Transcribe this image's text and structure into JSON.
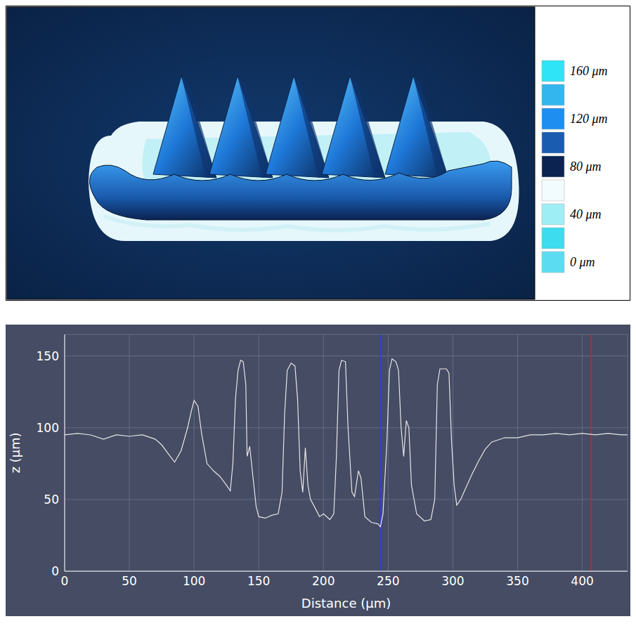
{
  "chart_data": [
    {
      "type": "surface",
      "colorbar": {
        "range": [
          0,
          160
        ],
        "colors": [
          "#2ee4f6",
          "#33b6ee",
          "#1e8ef0",
          "#1a5cb0",
          "#0a2350",
          "#f2fbfd",
          "#9eeff5",
          "#3ddcee",
          "#5cdcf0"
        ],
        "ticks": [
          {
            "value": 160,
            "label": "160 μm"
          },
          {
            "value": 120,
            "label": "120 μm"
          },
          {
            "value": 80,
            "label": "80 μm"
          },
          {
            "value": 40,
            "label": "40 μm"
          },
          {
            "value": 0,
            "label": "0 μm"
          }
        ]
      }
    },
    {
      "type": "line",
      "x_label": "Distance (μm)",
      "y_label": "z (μm)",
      "xlim": [
        0,
        435
      ],
      "ylim": [
        0,
        165
      ],
      "xticks": [
        0,
        50,
        100,
        150,
        200,
        250,
        300,
        350,
        400
      ],
      "yticks": [
        0,
        50,
        100,
        150
      ],
      "grid": true,
      "color": "#e6e6e6",
      "vlines": [
        {
          "x": 244,
          "color": "#2a3fe0"
        },
        {
          "x": 407,
          "color": "#d02030"
        }
      ],
      "x": [
        0,
        10,
        20,
        30,
        40,
        50,
        60,
        70,
        75,
        80,
        85,
        90,
        95,
        98,
        100,
        103,
        106,
        110,
        115,
        120,
        125,
        128,
        130,
        132,
        134,
        136,
        138,
        140,
        141,
        143,
        145,
        148,
        150,
        155,
        160,
        165,
        168,
        170,
        172,
        175,
        178,
        180,
        182,
        184,
        186,
        188,
        190,
        193,
        197,
        200,
        205,
        208,
        210,
        212,
        214,
        217,
        219,
        222,
        224,
        227,
        229,
        232,
        237,
        242,
        244,
        246,
        249,
        251,
        253,
        256,
        258,
        260,
        262,
        264,
        266,
        268,
        272,
        278,
        283,
        286,
        288,
        290,
        295,
        297,
        299,
        301,
        303,
        306,
        310,
        315,
        320,
        325,
        330,
        340,
        350,
        360,
        370,
        380,
        390,
        400,
        410,
        420,
        430,
        435
      ],
      "values": [
        95,
        96,
        95,
        92,
        95,
        94,
        95,
        92,
        88,
        82,
        76,
        84,
        100,
        112,
        119,
        115,
        95,
        75,
        70,
        66,
        60,
        56,
        75,
        120,
        140,
        147,
        146,
        130,
        80,
        87,
        70,
        45,
        38,
        37,
        39,
        40,
        55,
        110,
        140,
        145,
        143,
        120,
        70,
        55,
        86,
        60,
        50,
        45,
        38,
        40,
        36,
        40,
        80,
        140,
        147,
        146,
        100,
        55,
        52,
        70,
        65,
        38,
        34,
        33,
        31,
        40,
        90,
        140,
        148,
        146,
        140,
        100,
        80,
        105,
        100,
        60,
        40,
        35,
        36,
        50,
        130,
        141,
        141,
        138,
        90,
        60,
        46,
        50,
        58,
        68,
        77,
        85,
        90,
        93,
        93,
        95,
        95,
        96,
        95,
        96,
        95,
        96,
        95,
        95
      ]
    }
  ]
}
